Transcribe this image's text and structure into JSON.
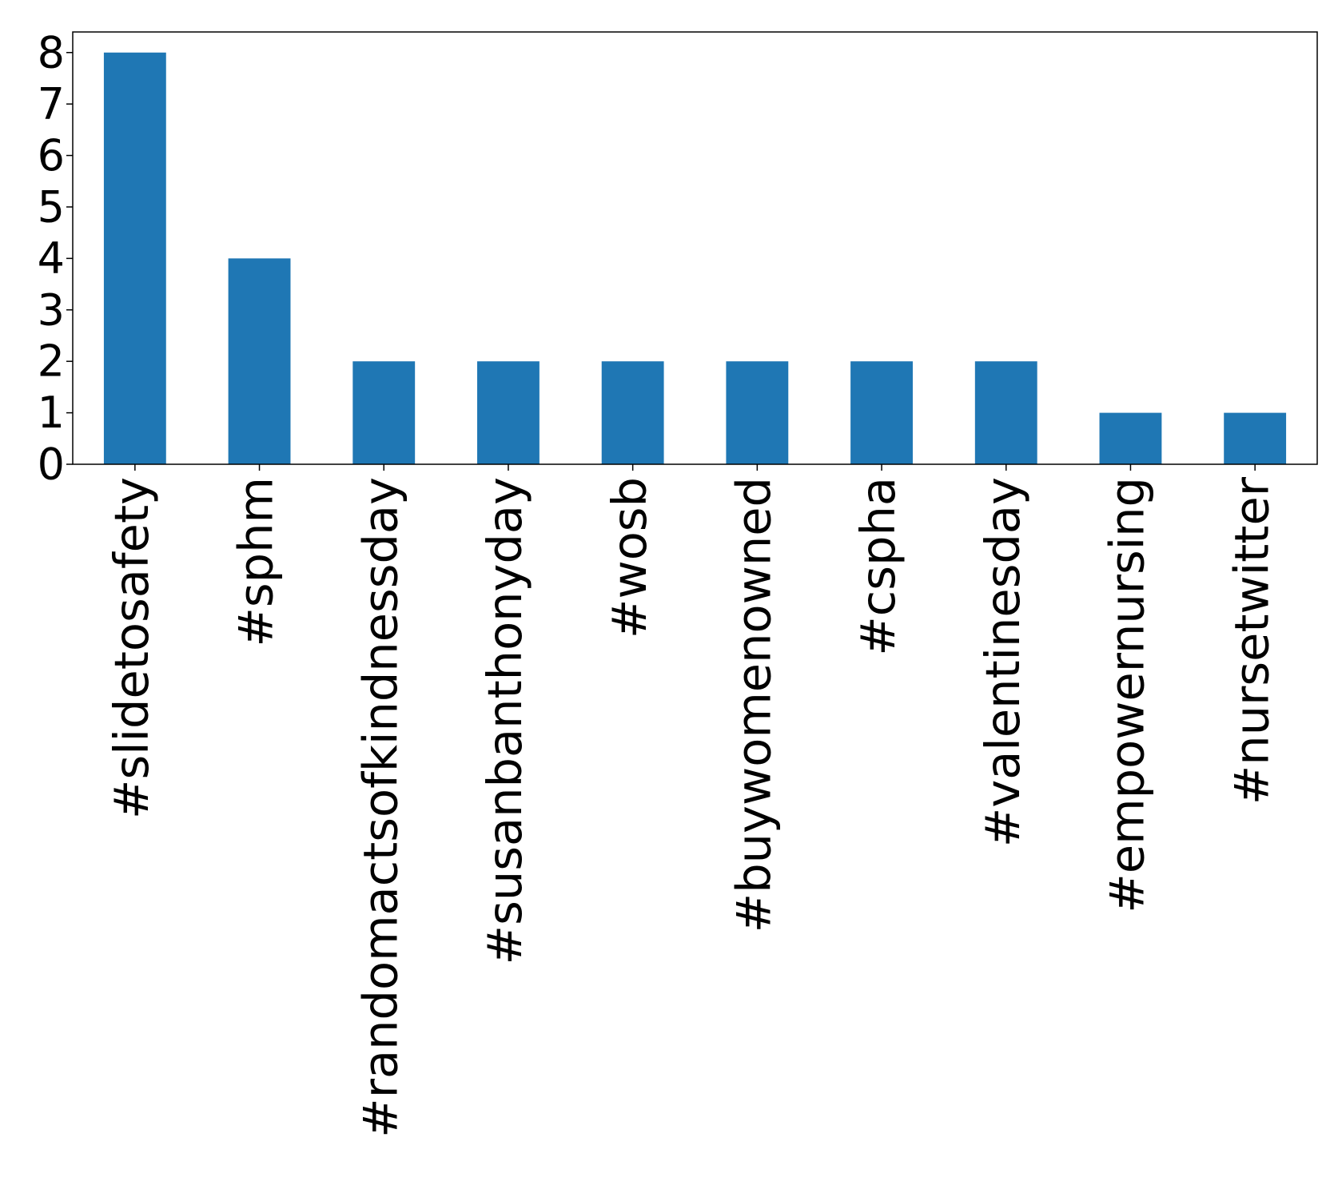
{
  "chart_data": {
    "type": "bar",
    "categories": [
      "#slidetosafety",
      "#sphm",
      "#randomactsofkindnessday",
      "#susanbanthonyday",
      "#wosb",
      "#buywomenowned",
      "#cspha",
      "#valentinesday",
      "#empowernursing",
      "#nursetwitter"
    ],
    "values": [
      8,
      4,
      2,
      2,
      2,
      2,
      2,
      2,
      1,
      1
    ],
    "color": "#1f77b4",
    "ylim": [
      0,
      8.4
    ],
    "yticks": [
      0,
      1,
      2,
      3,
      4,
      5,
      6,
      7,
      8
    ],
    "grid": false
  }
}
